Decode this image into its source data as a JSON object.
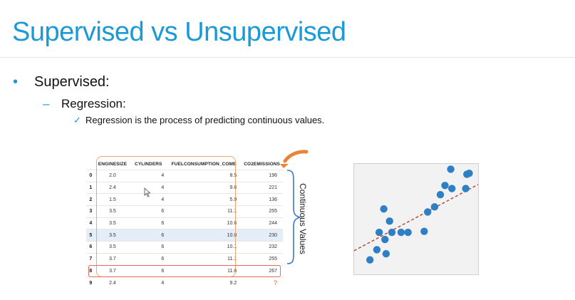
{
  "slide": {
    "title": "Supervised vs Unsupervised",
    "bullet_l1": "Supervised:",
    "bullet_l2": "Regression:",
    "bullet_l3": "Regression is the process of predicting continuous values.",
    "bullet_dot": "•",
    "bullet_dash": "–",
    "bullet_check": "✓"
  },
  "table": {
    "headers": [
      "",
      "ENGINESIZE",
      "CYLINDERS",
      "FUELCONSUMPTION_COMB",
      "CO2EMISSIONS"
    ],
    "rows": [
      [
        "0",
        "2.0",
        "4",
        "8.5",
        "196"
      ],
      [
        "1",
        "2.4",
        "4",
        "9.6",
        "221"
      ],
      [
        "2",
        "1.5",
        "4",
        "5.9",
        "136"
      ],
      [
        "3",
        "3.5",
        "6",
        "11.1",
        "255"
      ],
      [
        "4",
        "3.5",
        "6",
        "10.6",
        "244"
      ],
      [
        "5",
        "3.5",
        "6",
        "10.0",
        "230"
      ],
      [
        "6",
        "3.5",
        "6",
        "10.1",
        "232"
      ],
      [
        "7",
        "3.7",
        "6",
        "11.1",
        "255"
      ],
      [
        "8",
        "3.7",
        "6",
        "11.6",
        "267"
      ],
      [
        "9",
        "2.4",
        "4",
        "9.2",
        "?"
      ]
    ],
    "highlighted_row": 5,
    "unknown_row": 9
  },
  "continuous_label": "Continuous Values",
  "colors": {
    "title": "#1a9bd7",
    "accent_orange": "#f0a56a",
    "arrow_orange": "#e8853a",
    "red_outline": "#e66a5a",
    "brace_blue": "#3b78c9",
    "point_blue": "#2f7fc5",
    "trend_red": "#c0392b",
    "plot_bg": "#f2f2f2"
  },
  "icons": {
    "arrow": "curved-arrow-icon",
    "brace": "right-brace-icon",
    "cursor": "mouse-pointer-icon"
  },
  "scatter": {
    "points": [
      [
        0.1,
        0.1
      ],
      [
        0.16,
        0.2
      ],
      [
        0.24,
        0.16
      ],
      [
        0.23,
        0.3
      ],
      [
        0.18,
        0.37
      ],
      [
        0.29,
        0.37
      ],
      [
        0.37,
        0.37
      ],
      [
        0.43,
        0.37
      ],
      [
        0.27,
        0.48
      ],
      [
        0.22,
        0.6
      ],
      [
        0.57,
        0.38
      ],
      [
        0.6,
        0.57
      ],
      [
        0.66,
        0.62
      ],
      [
        0.71,
        0.74
      ],
      [
        0.75,
        0.83
      ],
      [
        0.81,
        0.8
      ],
      [
        0.93,
        0.8
      ],
      [
        0.94,
        0.94
      ],
      [
        0.96,
        0.95
      ],
      [
        0.8,
        0.99
      ]
    ],
    "trend": [
      [
        0,
        0.19
      ],
      [
        1,
        0.84
      ]
    ]
  }
}
